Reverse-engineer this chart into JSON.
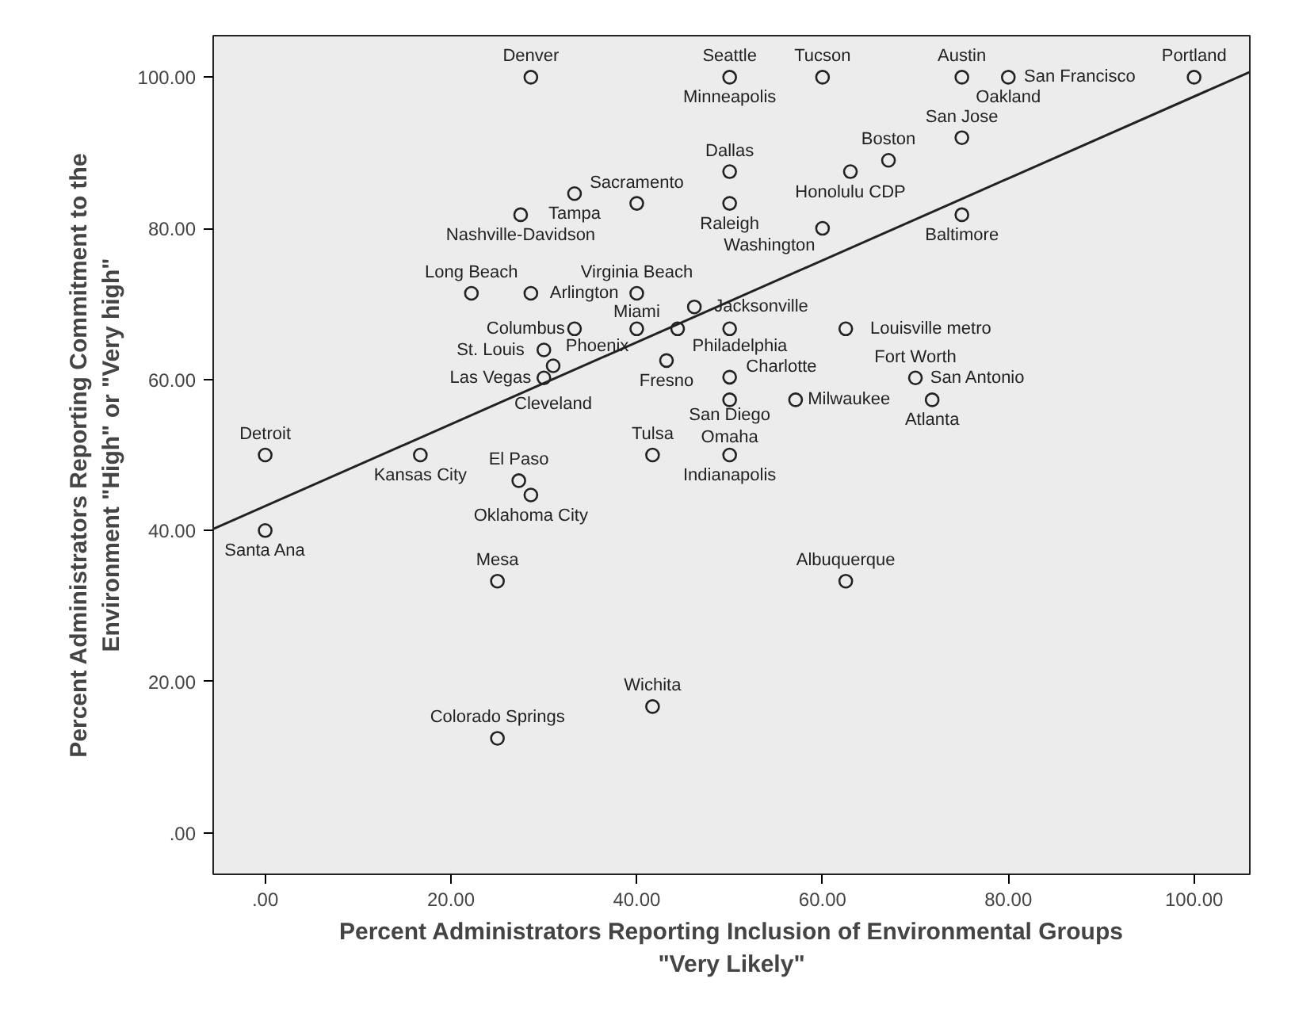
{
  "chart_data": {
    "type": "scatter",
    "xlabel": "Percent Administrators Reporting Inclusion of Environmental Groups\n\"Very Likely\"",
    "ylabel": "Percent Administrators Reporting Commitment to the\nEnvironment \"High\" or \"Very high\"",
    "xlim": [
      -5.6,
      106
    ],
    "ylim": [
      -5.5,
      105.5
    ],
    "xticks": [
      {
        "value": 0,
        "label": ".00"
      },
      {
        "value": 20,
        "label": "20.00"
      },
      {
        "value": 40,
        "label": "40.00"
      },
      {
        "value": 60,
        "label": "60.00"
      },
      {
        "value": 80,
        "label": "80.00"
      },
      {
        "value": 100,
        "label": "100.00"
      }
    ],
    "yticks": [
      {
        "value": 0,
        "label": ".00"
      },
      {
        "value": 20,
        "label": "20.00"
      },
      {
        "value": 40,
        "label": "40.00"
      },
      {
        "value": 60,
        "label": "60.00"
      },
      {
        "value": 80,
        "label": "80.00"
      },
      {
        "value": 100,
        "label": "100.00"
      }
    ],
    "grid": false,
    "series": [
      {
        "color": "#222222",
        "marker": "circle",
        "x": [
          28.6,
          50,
          60,
          75,
          80,
          100,
          75,
          63,
          67.1,
          50,
          40,
          50,
          60,
          75,
          33.3,
          27.5,
          22.2,
          28.6,
          40,
          33.3,
          40,
          44.4,
          46.2,
          50,
          62.5,
          30,
          43.2,
          31,
          30,
          50,
          50,
          57.1,
          70,
          71.8,
          0,
          16.7,
          41.7,
          50,
          0,
          27.3,
          28.6,
          25,
          62.5,
          41.7,
          25
        ],
        "values": [
          100,
          100,
          100,
          100,
          100,
          100,
          92,
          87.5,
          89,
          87.5,
          83.3,
          83.3,
          80,
          81.8,
          84.6,
          81.8,
          71.4,
          71.4,
          71.4,
          66.7,
          66.7,
          66.7,
          69.6,
          66.7,
          66.7,
          63.9,
          62.5,
          61.8,
          60.2,
          60.3,
          57.3,
          57.3,
          60.2,
          57.3,
          50,
          50,
          50,
          50,
          40,
          46.6,
          44.7,
          33.3,
          33.3,
          16.7,
          12.5
        ]
      },
      {
        "type": "line",
        "color": "#222222",
        "x": [
          -5.6,
          106
        ],
        "values": [
          40.2,
          100.7
        ]
      }
    ],
    "annotations": [
      {
        "text": "Denver",
        "x": 28.6,
        "y": 100
      },
      {
        "text": "Seattle",
        "x": 50,
        "y": 100
      },
      {
        "text": "Minneapolis",
        "x": 50,
        "y": 100
      },
      {
        "text": "Tucson",
        "x": 60,
        "y": 100
      },
      {
        "text": "Austin",
        "x": 75,
        "y": 100
      },
      {
        "text": "Oakland",
        "x": 80,
        "y": 100
      },
      {
        "text": "San Francisco",
        "x": 80,
        "y": 100
      },
      {
        "text": "Portland",
        "x": 100,
        "y": 100
      },
      {
        "text": "San Jose",
        "x": 75,
        "y": 92
      },
      {
        "text": "Honolulu CDP",
        "x": 63,
        "y": 87.5
      },
      {
        "text": "Boston",
        "x": 67.1,
        "y": 89
      },
      {
        "text": "Dallas",
        "x": 50,
        "y": 87.5
      },
      {
        "text": "Sacramento",
        "x": 40,
        "y": 83.3
      },
      {
        "text": "Raleigh",
        "x": 50,
        "y": 83.3
      },
      {
        "text": "Washington",
        "x": 60,
        "y": 80
      },
      {
        "text": "Baltimore",
        "x": 75,
        "y": 81.8
      },
      {
        "text": "Tampa",
        "x": 33.3,
        "y": 84.6
      },
      {
        "text": "Nashville-Davidson",
        "x": 27.5,
        "y": 81.8
      },
      {
        "text": "Long Beach",
        "x": 22.2,
        "y": 71.4
      },
      {
        "text": "Arlington",
        "x": 28.6,
        "y": 71.4
      },
      {
        "text": "Virginia Beach",
        "x": 40,
        "y": 71.4
      },
      {
        "text": "Miami",
        "x": 40,
        "y": 71.4
      },
      {
        "text": "Columbus",
        "x": 33.3,
        "y": 66.7
      },
      {
        "text": "Phoenix",
        "x": 40,
        "y": 66.7
      },
      {
        "text": "Philadelphia",
        "x": 44.4,
        "y": 66.7
      },
      {
        "text": "Jacksonville",
        "x": 46.2,
        "y": 69.6
      },
      {
        "text": "Charlotte",
        "x": 50,
        "y": 66.7
      },
      {
        "text": "Louisville metro",
        "x": 62.5,
        "y": 66.7
      },
      {
        "text": "St. Louis",
        "x": 30,
        "y": 63.9
      },
      {
        "text": "Fresno",
        "x": 43.2,
        "y": 62.5
      },
      {
        "text": "Cleveland",
        "x": 31,
        "y": 61.8
      },
      {
        "text": "Las Vegas",
        "x": 30,
        "y": 60.2
      },
      {
        "text": "San Diego",
        "x": 50,
        "y": 60.3
      },
      {
        "text": "Omaha",
        "x": 50,
        "y": 57.3
      },
      {
        "text": "Milwaukee",
        "x": 57.1,
        "y": 57.3
      },
      {
        "text": "Fort Worth",
        "x": 70,
        "y": 60.2
      },
      {
        "text": "San Antonio",
        "x": 70,
        "y": 60.2
      },
      {
        "text": "Atlanta",
        "x": 71.8,
        "y": 57.3
      },
      {
        "text": "Detroit",
        "x": 0,
        "y": 50
      },
      {
        "text": "Kansas City",
        "x": 16.7,
        "y": 50
      },
      {
        "text": "Tulsa",
        "x": 41.7,
        "y": 50
      },
      {
        "text": "Indianapolis",
        "x": 50,
        "y": 50
      },
      {
        "text": "Santa Ana",
        "x": 0,
        "y": 40
      },
      {
        "text": "El Paso",
        "x": 27.3,
        "y": 46.6
      },
      {
        "text": "Oklahoma City",
        "x": 28.6,
        "y": 44.7
      },
      {
        "text": "Mesa",
        "x": 25,
        "y": 33.3
      },
      {
        "text": "Albuquerque",
        "x": 62.5,
        "y": 33.3
      },
      {
        "text": "Wichita",
        "x": 41.7,
        "y": 16.7
      },
      {
        "text": "Colorado Springs",
        "x": 25,
        "y": 12.5
      }
    ]
  }
}
